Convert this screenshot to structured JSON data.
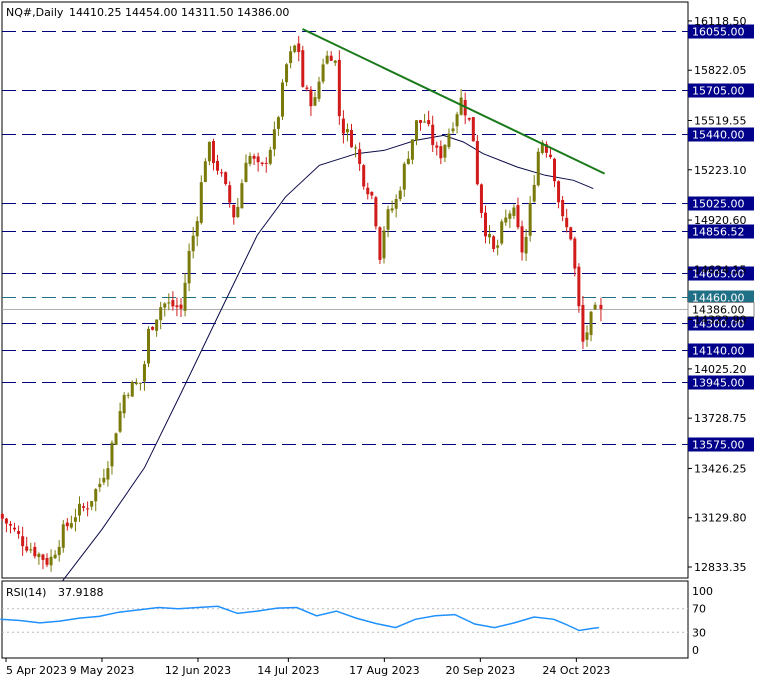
{
  "header": {
    "symbol": "NQ#,Daily",
    "ohlc": "14410.25 14454.00 14311.50 14386.00"
  },
  "rsi_label": {
    "name": "RSI(14)",
    "value": "37.9188"
  },
  "chart_data": [
    {
      "type": "candlestick",
      "symbol": "NQ#",
      "timeframe": "Daily",
      "last_bar": {
        "open": 14410.25,
        "high": 14454.0,
        "low": 14311.5,
        "close": 14386.0
      },
      "y_range": [
        12750,
        16160
      ],
      "x_tick_labels": [
        "5 Apr 2023",
        "9 May 2023",
        "12 Jun 2023",
        "14 Jul 2023",
        "17 Aug 2023",
        "20 Sep 2023",
        "24 Oct 2023"
      ],
      "y_tick_labels": [
        "16118.50",
        "15822.05",
        "15519.55",
        "15223.10",
        "14920.60",
        "14624.15",
        "14322.90",
        "14025.20",
        "13728.75",
        "13426.25",
        "13129.80",
        "12833.35"
      ],
      "horizontal_levels": [
        {
          "label": "16055.00",
          "value": 16055.0
        },
        {
          "label": "15705.00",
          "value": 15705.0
        },
        {
          "label": "15440.00",
          "value": 15440.0
        },
        {
          "label": "15025.00",
          "value": 15025.0
        },
        {
          "label": "14856.52",
          "value": 14856.52
        },
        {
          "label": "14605.00",
          "value": 14605.0
        },
        {
          "label": "14460.00",
          "value": 14460.0
        },
        {
          "label": "14300.00",
          "value": 14300.0
        },
        {
          "label": "14140.00",
          "value": 14140.0
        },
        {
          "label": "13945.00",
          "value": 13945.0
        },
        {
          "label": "13575.00",
          "value": 13575.0
        }
      ],
      "current_price": {
        "label": "14386.00",
        "value": 14386.0
      },
      "trendline": {
        "from": {
          "date": "2023-07-19",
          "value": 16070
        },
        "to": {
          "date": "2023-11-03",
          "value": 15200
        }
      },
      "moving_average_line": [
        {
          "date": "2023-04-25",
          "value": 12750
        },
        {
          "date": "2023-05-09",
          "value": 13060
        },
        {
          "date": "2023-05-24",
          "value": 13430
        },
        {
          "date": "2023-06-06",
          "value": 13880
        },
        {
          "date": "2023-06-19",
          "value": 14340
        },
        {
          "date": "2023-07-03",
          "value": 14830
        },
        {
          "date": "2023-07-13",
          "value": 15060
        },
        {
          "date": "2023-07-25",
          "value": 15250
        },
        {
          "date": "2023-08-07",
          "value": 15320
        },
        {
          "date": "2023-08-17",
          "value": 15340
        },
        {
          "date": "2023-08-28",
          "value": 15400
        },
        {
          "date": "2023-09-07",
          "value": 15430
        },
        {
          "date": "2023-09-14",
          "value": 15390
        },
        {
          "date": "2023-09-21",
          "value": 15320
        },
        {
          "date": "2023-10-03",
          "value": 15240
        },
        {
          "date": "2023-10-13",
          "value": 15190
        },
        {
          "date": "2023-10-23",
          "value": 15160
        },
        {
          "date": "2023-10-30",
          "value": 15110
        }
      ],
      "price_path": [
        [
          "2023-04-03",
          13150
        ],
        [
          "2023-04-07",
          13080
        ],
        [
          "2023-04-12",
          12980
        ],
        [
          "2023-04-18",
          12900
        ],
        [
          "2023-04-21",
          12860
        ],
        [
          "2023-04-26",
          13050
        ],
        [
          "2023-05-01",
          13170
        ],
        [
          "2023-05-04",
          13190
        ],
        [
          "2023-05-09",
          13340
        ],
        [
          "2023-05-12",
          13480
        ],
        [
          "2023-05-15",
          13690
        ],
        [
          "2023-05-18",
          13900
        ],
        [
          "2023-05-24",
          13950
        ],
        [
          "2023-05-26",
          14240
        ],
        [
          "2023-05-31",
          14420
        ],
        [
          "2023-06-05",
          14400
        ],
        [
          "2023-06-07",
          14380
        ],
        [
          "2023-06-09",
          14680
        ],
        [
          "2023-06-12",
          14900
        ],
        [
          "2023-06-14",
          15150
        ],
        [
          "2023-06-16",
          15380
        ],
        [
          "2023-06-21",
          15180
        ],
        [
          "2023-06-26",
          14920
        ],
        [
          "2023-06-30",
          15330
        ],
        [
          "2023-07-05",
          15210
        ],
        [
          "2023-07-10",
          15440
        ],
        [
          "2023-07-12",
          15640
        ],
        [
          "2023-07-14",
          15850
        ],
        [
          "2023-07-18",
          16000
        ],
        [
          "2023-07-20",
          15700
        ],
        [
          "2023-07-24",
          15620
        ],
        [
          "2023-07-27",
          15880
        ],
        [
          "2023-07-31",
          15940
        ],
        [
          "2023-08-02",
          15500
        ],
        [
          "2023-08-07",
          15380
        ],
        [
          "2023-08-10",
          15180
        ],
        [
          "2023-08-14",
          15040
        ],
        [
          "2023-08-16",
          14700
        ],
        [
          "2023-08-18",
          14920
        ],
        [
          "2023-08-22",
          15040
        ],
        [
          "2023-08-25",
          15250
        ],
        [
          "2023-08-29",
          15500
        ],
        [
          "2023-09-01",
          15520
        ],
        [
          "2023-09-06",
          15290
        ],
        [
          "2023-09-08",
          15380
        ],
        [
          "2023-09-12",
          15560
        ],
        [
          "2023-09-14",
          15650
        ],
        [
          "2023-09-18",
          15450
        ],
        [
          "2023-09-20",
          15100
        ],
        [
          "2023-09-22",
          14890
        ],
        [
          "2023-09-26",
          14700
        ],
        [
          "2023-09-28",
          14860
        ],
        [
          "2023-10-02",
          15000
        ],
        [
          "2023-10-04",
          14850
        ],
        [
          "2023-10-06",
          14700
        ],
        [
          "2023-10-10",
          15200
        ],
        [
          "2023-10-12",
          15420
        ],
        [
          "2023-10-16",
          15300
        ],
        [
          "2023-10-18",
          15080
        ],
        [
          "2023-10-20",
          14900
        ],
        [
          "2023-10-23",
          14820
        ],
        [
          "2023-10-25",
          14470
        ],
        [
          "2023-10-27",
          14180
        ],
        [
          "2023-10-30",
          14330
        ],
        [
          "2023-11-01",
          14386
        ]
      ],
      "rsi": {
        "name": "RSI(14)",
        "value": 37.9188,
        "range": [
          0,
          100
        ],
        "tick_labels": [
          "100",
          "70",
          "30",
          "0"
        ],
        "levels": [
          70,
          30
        ],
        "series": [
          [
            "2023-04-03",
            52
          ],
          [
            "2023-04-10",
            50
          ],
          [
            "2023-04-17",
            46
          ],
          [
            "2023-04-24",
            49
          ],
          [
            "2023-05-01",
            54
          ],
          [
            "2023-05-08",
            57
          ],
          [
            "2023-05-15",
            64
          ],
          [
            "2023-05-22",
            68
          ],
          [
            "2023-05-29",
            72
          ],
          [
            "2023-06-05",
            70
          ],
          [
            "2023-06-12",
            72
          ],
          [
            "2023-06-19",
            74
          ],
          [
            "2023-06-26",
            62
          ],
          [
            "2023-07-03",
            66
          ],
          [
            "2023-07-10",
            71
          ],
          [
            "2023-07-17",
            72
          ],
          [
            "2023-07-24",
            58
          ],
          [
            "2023-07-31",
            66
          ],
          [
            "2023-08-07",
            54
          ],
          [
            "2023-08-14",
            45
          ],
          [
            "2023-08-21",
            38
          ],
          [
            "2023-08-28",
            52
          ],
          [
            "2023-09-04",
            58
          ],
          [
            "2023-09-11",
            60
          ],
          [
            "2023-09-18",
            44
          ],
          [
            "2023-09-25",
            38
          ],
          [
            "2023-10-02",
            46
          ],
          [
            "2023-10-09",
            56
          ],
          [
            "2023-10-16",
            52
          ],
          [
            "2023-10-20",
            44
          ],
          [
            "2023-10-25",
            33
          ],
          [
            "2023-10-30",
            37
          ],
          [
            "2023-11-01",
            37.92
          ]
        ]
      }
    }
  ]
}
